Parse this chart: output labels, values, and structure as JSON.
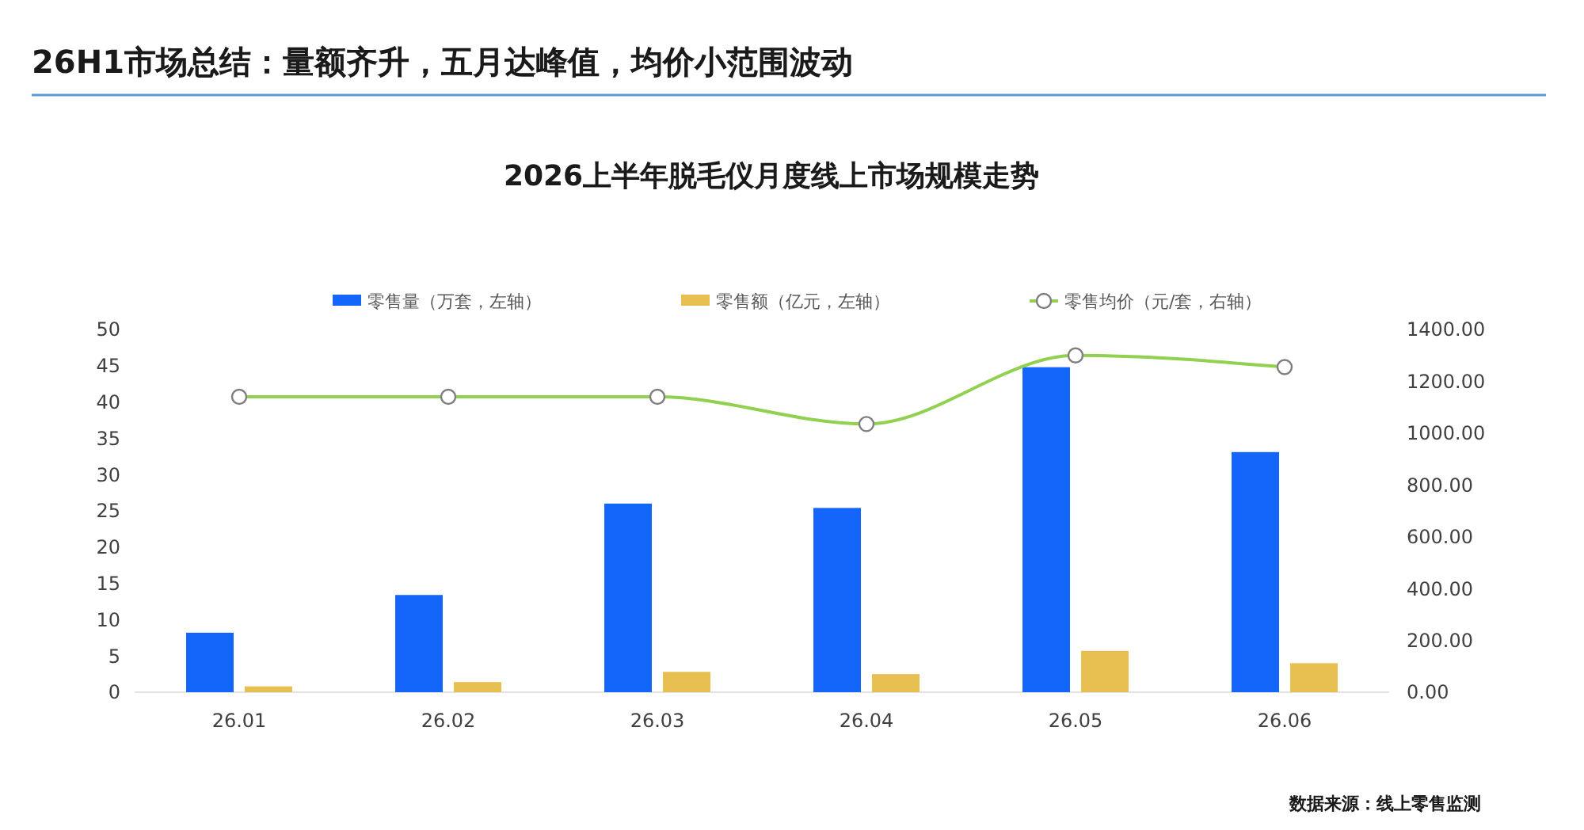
{
  "chart_data": {
    "type": "bar",
    "title": "26H1市场总结：量额齐升，五月达峰值，均价小范围波动",
    "subtitle": "2026上半年脱毛仪月度线上市场规模走势",
    "annotations": [
      "数据来源：线上零售监测"
    ],
    "categories": [
      "26.01",
      "26.02",
      "26.03",
      "26.04",
      "26.05",
      "26.06"
    ],
    "series": [
      {
        "name": "零售量（万套，左轴）",
        "color": "#1466fa",
        "values": [
          8.2,
          13.4,
          26.0,
          25.4,
          44.8,
          33.1
        ]
      },
      {
        "name": "零售额（亿元，左轴）",
        "color": "#e8c052",
        "values": [
          0.8,
          1.4,
          2.8,
          2.5,
          5.7,
          4.0
        ]
      },
      {
        "name": "零售均价（元/套，右轴）",
        "type": "line",
        "axis": "y2",
        "color": "#92d050",
        "marker": "circle",
        "values": [
          1140,
          1140,
          1140,
          1035,
          1300,
          1255
        ]
      }
    ],
    "ylim": [
      0,
      50
    ],
    "yticks": [
      0,
      5,
      10,
      15,
      20,
      25,
      30,
      35,
      40,
      45,
      50
    ],
    "y2lim": [
      0,
      1400
    ],
    "y2ticks": [
      {
        "value": 0,
        "label": "0.00"
      },
      {
        "value": 200,
        "label": "200.00"
      },
      {
        "value": 400,
        "label": "400.00"
      },
      {
        "value": 600,
        "label": "600.00"
      },
      {
        "value": 800,
        "label": "800.00"
      },
      {
        "value": 1000,
        "label": "1000.00"
      },
      {
        "value": 1200,
        "label": "1200.00"
      },
      {
        "value": 1400,
        "label": "1400.00"
      }
    ],
    "legend": "top"
  }
}
